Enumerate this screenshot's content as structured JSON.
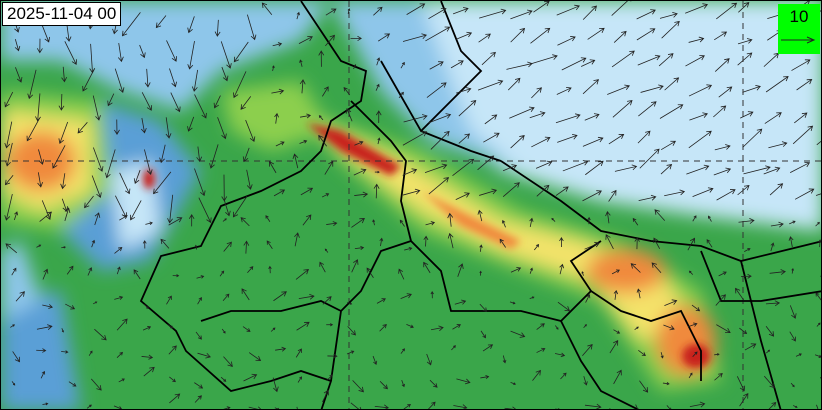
{
  "map": {
    "timestamp": "2025-11-04 00",
    "legend": {
      "reference_vector_value": "10",
      "background_color": "#00ff00"
    },
    "colors": {
      "low": "#c6e6f8",
      "light_blue": "#8ec6ea",
      "blue": "#5a9fd6",
      "green": "#3aa64a",
      "light_green": "#8ccf4e",
      "yellow": "#f4e36a",
      "orange": "#f08a3c",
      "red": "#c8231e"
    },
    "overlays": [
      "wind-vectors",
      "state-boundaries",
      "lat-lon-gridlines"
    ]
  }
}
